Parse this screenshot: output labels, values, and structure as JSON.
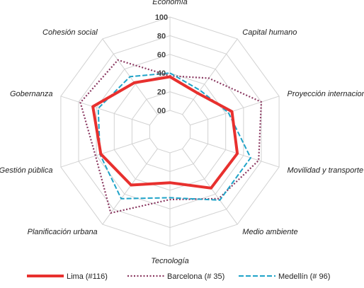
{
  "chart_data": {
    "type": "radar",
    "title": "",
    "axes": [
      "Economía",
      "Capital humano",
      "Proyección internacional",
      "Movilidad y transporte",
      "Medio ambiente",
      "Tecnología",
      "Planificación urbana",
      "Gestión pública",
      "Gobernanza",
      "Cohesión social"
    ],
    "range": [
      0,
      100
    ],
    "ticks": [
      "00",
      "20",
      "40",
      "60",
      "80",
      "100"
    ],
    "grid": true,
    "legend_position": "bottom",
    "series": [
      {
        "name": "Lima (#116)",
        "style": "solid",
        "color": "#e8302e",
        "values": [
          36,
          28,
          47,
          53,
          52,
          32,
          48,
          55,
          64,
          42
        ]
      },
      {
        "name": "Barcelona (# 35)",
        "style": "dotted",
        "color": "#8b3a62",
        "values": [
          37,
          48,
          80,
          77,
          66,
          50,
          85,
          61,
          78,
          72
        ]
      },
      {
        "name": "Medellín (# 96)",
        "style": "dashed",
        "color": "#1fa3c8",
        "values": [
          40,
          32,
          43,
          68,
          68,
          48,
          66,
          56,
          58,
          50
        ]
      }
    ]
  }
}
